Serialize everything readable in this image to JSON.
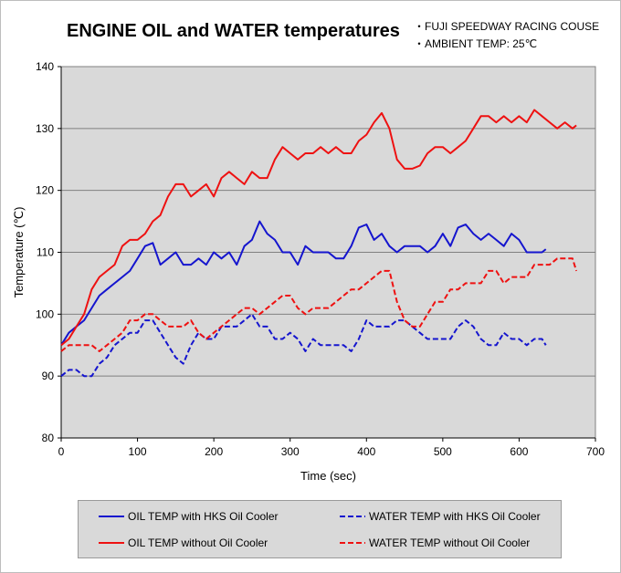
{
  "title": "ENGINE OIL and WATER temperatures",
  "notes": [
    "・FUJI SPEEDWAY  RACING COUSE",
    "・AMBIENT TEMP: 25℃"
  ],
  "colors": {
    "oil_hks": "#1515ce",
    "water_hks": "#1515ce",
    "oil_no": "#ee1111",
    "water_no": "#ee1111",
    "plot_bg": "#d9d9d9"
  },
  "chart_data": {
    "type": "line",
    "title": "ENGINE OIL and WATER temperatures",
    "xlabel": "Time (sec)",
    "ylabel": "Temperature (℃)",
    "xlim": [
      0,
      700
    ],
    "ylim": [
      80,
      140
    ],
    "xticks": [
      "0",
      "100",
      "200",
      "300",
      "400",
      "500",
      "600",
      "700"
    ],
    "yticks": [
      "80",
      "90",
      "100",
      "110",
      "120",
      "130",
      "140"
    ],
    "grid": "horizontal",
    "legend_position": "bottom",
    "series": [
      {
        "name": "OIL TEMP with HKS Oil Cooler",
        "style": "solid",
        "x": [
          0,
          10,
          20,
          30,
          40,
          50,
          60,
          70,
          80,
          90,
          100,
          110,
          120,
          130,
          140,
          150,
          160,
          170,
          180,
          190,
          200,
          210,
          220,
          230,
          240,
          250,
          260,
          270,
          280,
          290,
          300,
          310,
          320,
          330,
          340,
          350,
          360,
          370,
          380,
          390,
          400,
          410,
          420,
          430,
          440,
          450,
          460,
          470,
          480,
          490,
          500,
          510,
          520,
          530,
          540,
          550,
          560,
          570,
          580,
          590,
          600,
          610,
          620,
          630,
          635
        ],
        "y": [
          95,
          97,
          98,
          99,
          101,
          103,
          104,
          105,
          106,
          107,
          109,
          111,
          111.5,
          108,
          109,
          110,
          108,
          108,
          109,
          108,
          110,
          109,
          110,
          108,
          111,
          112,
          115,
          113,
          112,
          110,
          110,
          108,
          111,
          110,
          110,
          110,
          109,
          109,
          111,
          114,
          114.5,
          112,
          113,
          111,
          110,
          111,
          111,
          111,
          110,
          111,
          113,
          111,
          114,
          114.5,
          113,
          112,
          113,
          112,
          111,
          113,
          112,
          110,
          110,
          110,
          110.5
        ]
      },
      {
        "name": "WATER TEMP with HKS Oil Cooler",
        "style": "dashed",
        "x": [
          0,
          10,
          20,
          30,
          40,
          50,
          60,
          70,
          80,
          90,
          100,
          110,
          120,
          130,
          140,
          150,
          160,
          170,
          180,
          190,
          200,
          210,
          220,
          230,
          240,
          250,
          260,
          270,
          280,
          290,
          300,
          310,
          320,
          330,
          340,
          350,
          360,
          370,
          380,
          390,
          400,
          410,
          420,
          430,
          440,
          450,
          460,
          470,
          480,
          490,
          500,
          510,
          520,
          530,
          540,
          550,
          560,
          570,
          580,
          590,
          600,
          610,
          620,
          630,
          635
        ],
        "y": [
          90,
          91,
          91,
          90,
          90,
          92,
          93,
          95,
          96,
          97,
          97,
          99,
          99,
          97,
          95,
          93,
          92,
          95,
          97,
          96,
          96,
          98,
          98,
          98,
          99,
          100,
          98,
          98,
          96,
          96,
          97,
          96,
          94,
          96,
          95,
          95,
          95,
          95,
          94,
          96,
          99,
          98,
          98,
          98,
          99,
          99,
          98,
          97,
          96,
          96,
          96,
          96,
          98,
          99,
          98,
          96,
          95,
          95,
          97,
          96,
          96,
          95,
          96,
          96,
          95
        ]
      },
      {
        "name": "OIL TEMP without Oil Cooler",
        "style": "solid",
        "x": [
          0,
          10,
          20,
          30,
          40,
          50,
          60,
          70,
          80,
          90,
          100,
          110,
          120,
          130,
          140,
          150,
          160,
          170,
          180,
          190,
          200,
          210,
          220,
          230,
          240,
          250,
          260,
          270,
          280,
          290,
          300,
          310,
          320,
          330,
          340,
          350,
          360,
          370,
          380,
          390,
          400,
          410,
          420,
          430,
          440,
          450,
          460,
          470,
          480,
          490,
          500,
          510,
          520,
          530,
          540,
          550,
          560,
          570,
          580,
          590,
          600,
          610,
          620,
          630,
          640,
          650,
          660,
          670,
          675
        ],
        "y": [
          95,
          96,
          98,
          100,
          104,
          106,
          107,
          108,
          111,
          112,
          112,
          113,
          115,
          116,
          119,
          121,
          121,
          119,
          120,
          121,
          119,
          122,
          123,
          122,
          121,
          123,
          122,
          122,
          125,
          127,
          126,
          125,
          126,
          126,
          127,
          126,
          127,
          126,
          126,
          128,
          129,
          131,
          132.5,
          130,
          125,
          123.5,
          123.5,
          124,
          126,
          127,
          127,
          126,
          127,
          128,
          130,
          132,
          132,
          131,
          132,
          131,
          132,
          131,
          133,
          132,
          131,
          130,
          131,
          130,
          130.5
        ]
      },
      {
        "name": "WATER TEMP without Oil Cooler",
        "style": "dashed",
        "x": [
          0,
          10,
          20,
          30,
          40,
          50,
          60,
          70,
          80,
          90,
          100,
          110,
          120,
          130,
          140,
          150,
          160,
          170,
          180,
          190,
          200,
          210,
          220,
          230,
          240,
          250,
          260,
          270,
          280,
          290,
          300,
          310,
          320,
          330,
          340,
          350,
          360,
          370,
          380,
          390,
          400,
          410,
          420,
          430,
          440,
          450,
          460,
          470,
          480,
          490,
          500,
          510,
          520,
          530,
          540,
          550,
          560,
          570,
          580,
          590,
          600,
          610,
          620,
          630,
          640,
          650,
          660,
          670,
          675
        ],
        "y": [
          94,
          95,
          95,
          95,
          95,
          94,
          95,
          96,
          97,
          99,
          99,
          100,
          100,
          99,
          98,
          98,
          98,
          99,
          97,
          96,
          97,
          98,
          99,
          100,
          101,
          101,
          100,
          101,
          102,
          103,
          103,
          101,
          100,
          101,
          101,
          101,
          102,
          103,
          104,
          104,
          105,
          106,
          107,
          107,
          102,
          99,
          98,
          98,
          100,
          102,
          102,
          104,
          104,
          105,
          105,
          105,
          107,
          107,
          105,
          106,
          106,
          106,
          108,
          108,
          108,
          109,
          109,
          109,
          107
        ]
      }
    ]
  }
}
